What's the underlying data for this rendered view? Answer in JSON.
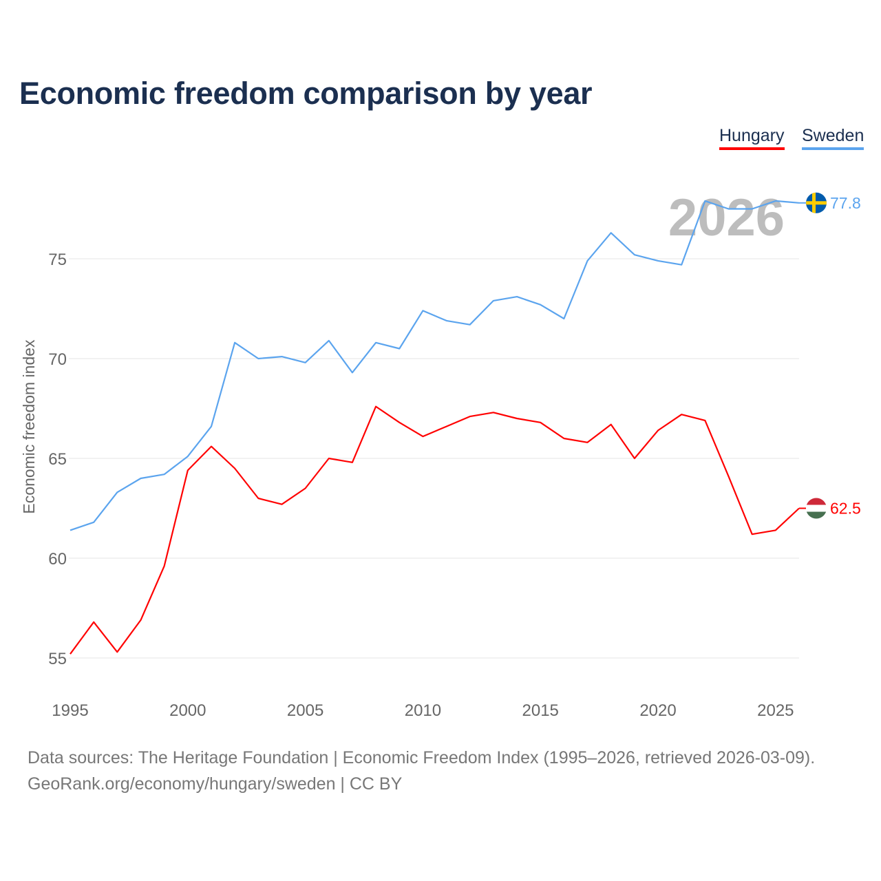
{
  "chart_data": {
    "type": "line",
    "title": "Economic freedom comparison by year",
    "xlabel": "",
    "ylabel": "Economic freedom index",
    "x": [
      1995,
      1996,
      1997,
      1998,
      1999,
      2000,
      2001,
      2002,
      2003,
      2004,
      2005,
      2006,
      2007,
      2008,
      2009,
      2010,
      2011,
      2012,
      2013,
      2014,
      2015,
      2016,
      2017,
      2018,
      2019,
      2020,
      2021,
      2022,
      2023,
      2024,
      2025,
      2026
    ],
    "xticks": [
      "1995",
      "2000",
      "2005",
      "2010",
      "2015",
      "2020",
      "2025"
    ],
    "yticks": [
      "55",
      "60",
      "65",
      "70",
      "75"
    ],
    "ylim": [
      53.5,
      79
    ],
    "xlim": [
      1995,
      2026
    ],
    "grid": true,
    "legend_position": "top-right",
    "current_year_label": "2026",
    "series": [
      {
        "name": "Hungary",
        "color": "#ff0000",
        "end_label": "62.5",
        "values": [
          55.2,
          56.8,
          55.3,
          56.9,
          59.6,
          64.4,
          65.6,
          64.5,
          63.0,
          62.7,
          63.5,
          65.0,
          64.8,
          67.6,
          66.8,
          66.1,
          66.6,
          67.1,
          67.3,
          67.0,
          66.8,
          66.0,
          65.8,
          66.7,
          65.0,
          66.4,
          67.2,
          66.9,
          64.1,
          61.2,
          61.4,
          62.5
        ]
      },
      {
        "name": "Sweden",
        "color": "#5ba4ee",
        "end_label": "77.8",
        "values": [
          61.4,
          61.8,
          63.3,
          64.0,
          64.2,
          65.1,
          66.6,
          70.8,
          70.0,
          70.1,
          69.8,
          70.9,
          69.3,
          70.8,
          70.5,
          72.4,
          71.9,
          71.7,
          72.9,
          73.1,
          72.7,
          72.0,
          74.9,
          76.3,
          75.2,
          74.9,
          74.7,
          77.9,
          77.5,
          77.5,
          77.9,
          77.8
        ]
      }
    ]
  },
  "footer": {
    "line1": "Data sources: The Heritage Foundation | Economic Freedom Index (1995–2026, retrieved 2026-03-09).",
    "line2": "GeoRank.org/economy/hungary/sweden | CC BY"
  }
}
